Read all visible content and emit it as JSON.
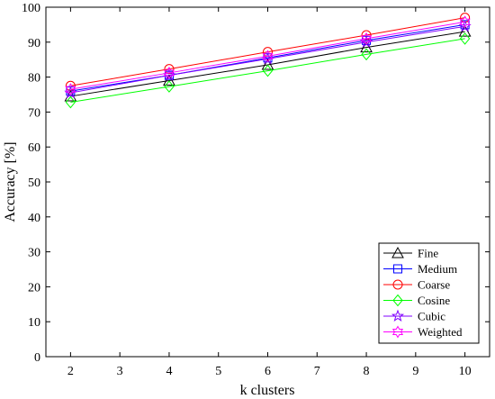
{
  "chart_data": {
    "type": "line",
    "xlabel": "k clusters",
    "ylabel": "Accuracy [%]",
    "xlim": [
      1.5,
      10.5
    ],
    "ylim": [
      0,
      100
    ],
    "x_ticks": [
      2,
      3,
      4,
      5,
      6,
      7,
      8,
      9,
      10
    ],
    "y_ticks": [
      0,
      10,
      20,
      30,
      40,
      50,
      60,
      70,
      80,
      90,
      100
    ],
    "grid": false,
    "legend_position": "bottom-right",
    "x": [
      2,
      4,
      6,
      8,
      10
    ],
    "series": [
      {
        "name": "Fine",
        "marker": "triangle",
        "color": "#000000",
        "values": [
          74.5,
          79,
          83.5,
          88.5,
          93
        ]
      },
      {
        "name": "Medium",
        "marker": "square",
        "color": "#0000ff",
        "values": [
          76,
          80.5,
          85.5,
          90.5,
          95
        ]
      },
      {
        "name": "Coarse",
        "marker": "circle",
        "color": "#ff0000",
        "values": [
          77.5,
          82.3,
          87.2,
          92,
          97
        ]
      },
      {
        "name": "Cosine",
        "marker": "diamond",
        "color": "#00ff00",
        "values": [
          72.8,
          77.3,
          81.8,
          86.5,
          91
        ]
      },
      {
        "name": "Cubic",
        "marker": "star",
        "color": "#8000ff",
        "values": [
          75.5,
          80.5,
          85.2,
          90,
          94.5
        ]
      },
      {
        "name": "Weighted",
        "marker": "hexagram",
        "color": "#ff00ff",
        "values": [
          76.5,
          81.2,
          86,
          91,
          95.8
        ]
      }
    ]
  }
}
